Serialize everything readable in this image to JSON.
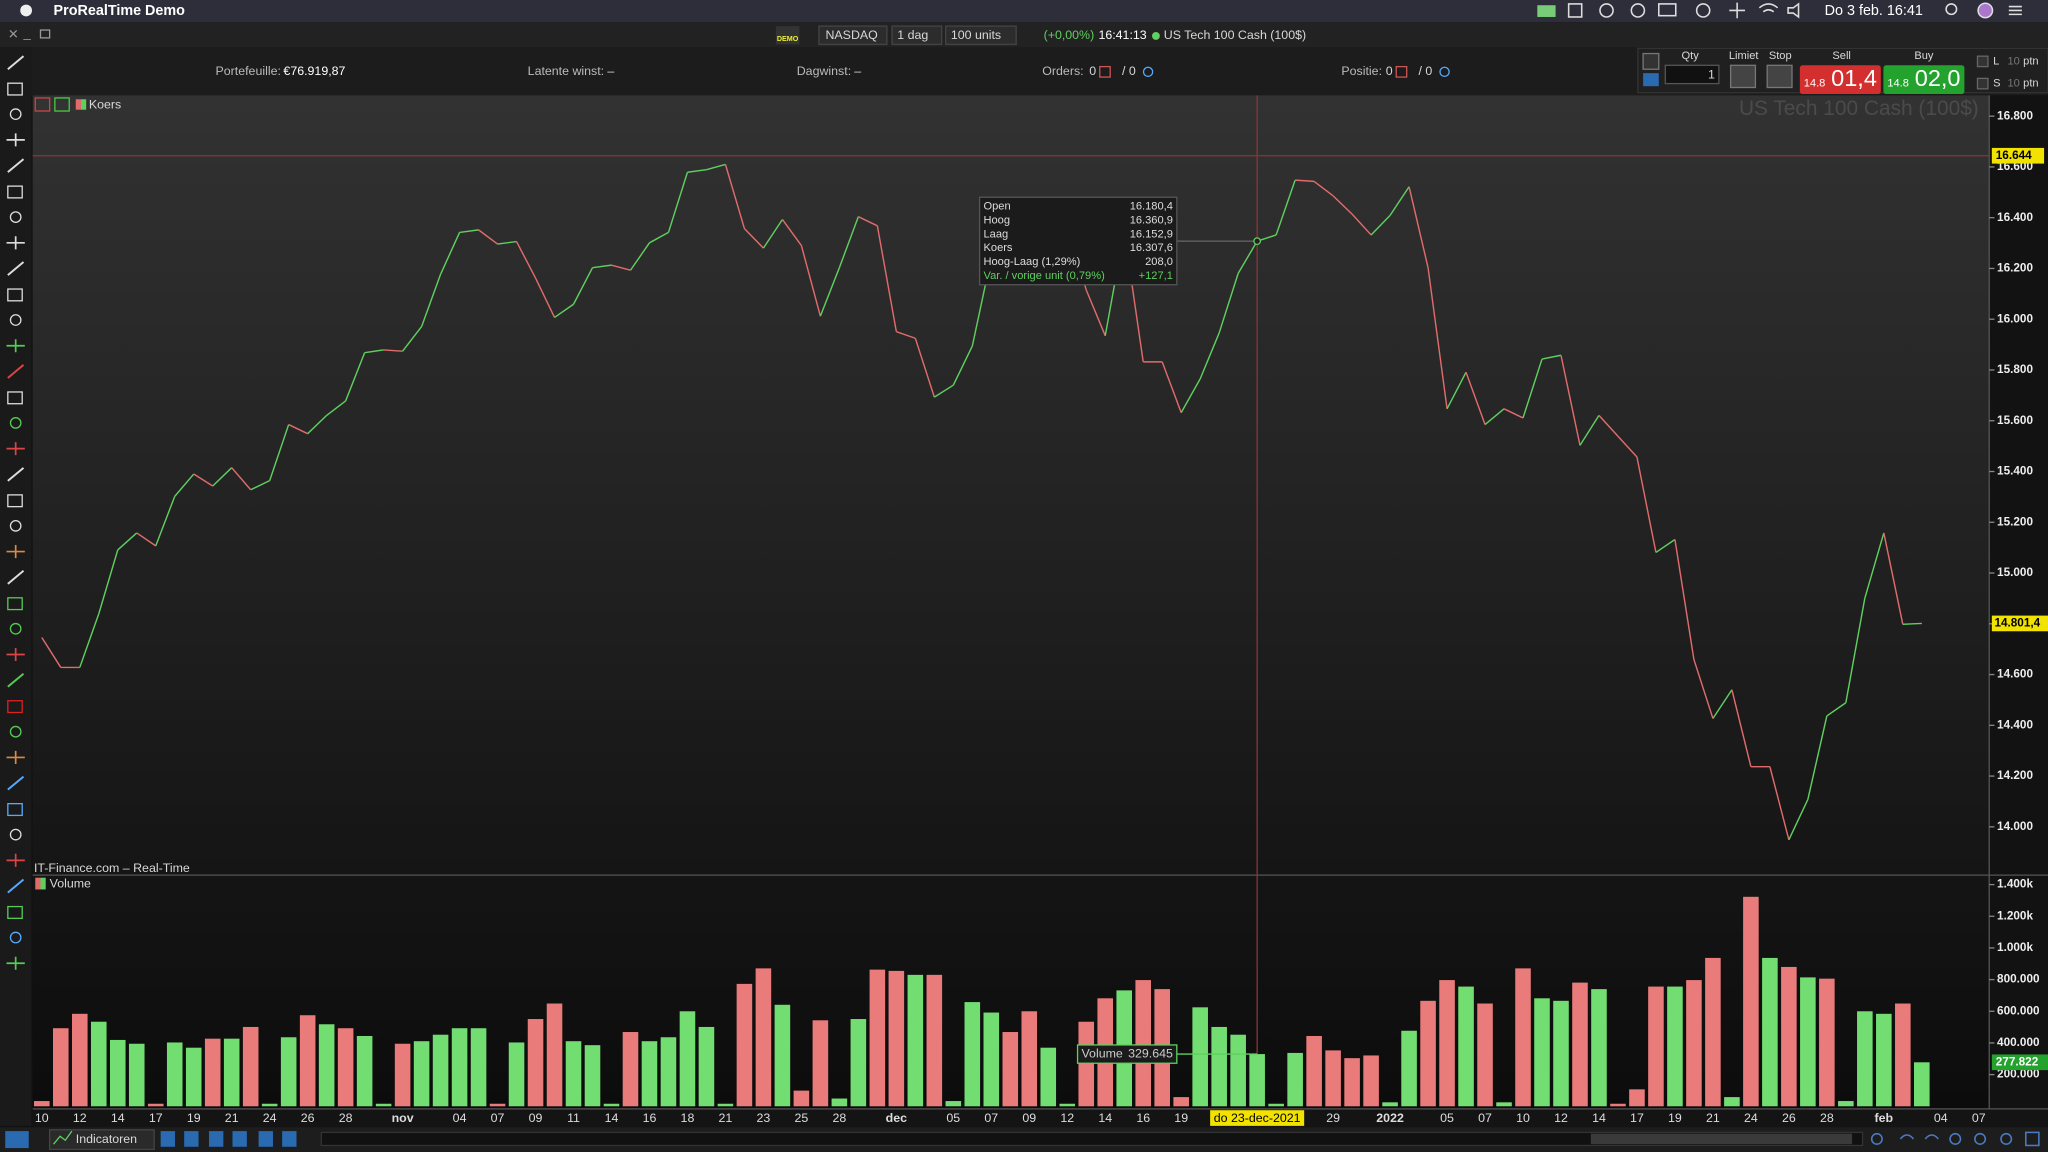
{
  "menu_bar": {
    "app": "ProRealTime Demo",
    "clock": "Do 3 feb.  16:41"
  },
  "toolbar": {
    "badge": "DEMO",
    "market": "NASDAQ",
    "period": "1 dag",
    "units": "100 units",
    "change": "(+0,00%)",
    "time": "16:41:13",
    "instrument": "US Tech 100 Cash (100$)"
  },
  "account": {
    "portfolio_label": "Portefeuille:",
    "portfolio": "€76.919,87",
    "latent_label": "Latente winst:",
    "latent": "–",
    "day_label": "Dagwinst:",
    "day": "–",
    "orders_label": "Orders:",
    "orders": "0",
    "orders_total": "/ 0",
    "position_label": "Positie:",
    "position": "0",
    "position_total": "/ 0"
  },
  "order_panel": {
    "qty_label": "Qty",
    "qty": "1",
    "limit_label": "Limiet",
    "stop_label": "Stop",
    "sell_label": "Sell",
    "sell_prefix": "14.8",
    "sell_price": "01,4",
    "buy_label": "Buy",
    "buy_prefix": "14.8",
    "buy_price": "02,0",
    "long_label": "L",
    "short_label": "S",
    "long_points": "10",
    "short_points": "10",
    "points_unit": "ptn"
  },
  "tooltip": {
    "rows": [
      [
        "Open",
        "16.180,4"
      ],
      [
        "Hoog",
        "16.360,9"
      ],
      [
        "Laag",
        "16.152,9"
      ],
      [
        "Koers",
        "16.307,6"
      ],
      [
        "Hoog-Laag (1,29%)",
        "208,0"
      ],
      [
        "Var. / vorige unit (0,79%)",
        "+127,1"
      ]
    ]
  },
  "source": "IT-Finance.com – Real-Time",
  "bottom_bar": {
    "indicators": "Indicatoren"
  },
  "chart_data": [
    {
      "type": "line",
      "watermark": "US Tech 100 Cash (100$)",
      "categories": [
        "10",
        null,
        "12",
        null,
        "14",
        null,
        "17",
        null,
        "19",
        null,
        "21",
        null,
        "24",
        null,
        "26",
        null,
        "28",
        null,
        null,
        "nov",
        null,
        null,
        "04",
        null,
        "07",
        null,
        "09",
        null,
        "11",
        null,
        "14",
        null,
        "16",
        null,
        "18",
        null,
        "21",
        null,
        "23",
        null,
        "25",
        null,
        "28",
        null,
        null,
        "dec",
        null,
        null,
        "05",
        null,
        "07",
        null,
        "09",
        null,
        "12",
        null,
        "14",
        null,
        "16",
        null,
        "19",
        null,
        null,
        null,
        "do 23-dec-2021",
        null,
        null,
        null,
        "29",
        null,
        null,
        "2022",
        null,
        null,
        "05",
        null,
        "07",
        null,
        "10",
        null,
        "12",
        null,
        "14",
        null,
        "17",
        null,
        "19",
        null,
        "21",
        null,
        "24",
        null,
        "26",
        null,
        "28",
        null,
        null,
        "feb",
        null,
        null,
        "04",
        null,
        "07"
      ],
      "series": [
        {
          "name": "Koers",
          "up_color": "#5fcf5f",
          "down_color": "#e06b6b",
          "values": [
            14746,
            14628,
            14628,
            14839,
            15091,
            15158,
            15107,
            15302,
            15390,
            15343,
            15415,
            15328,
            15364,
            15585,
            15549,
            15621,
            15678,
            15868,
            15879,
            15874,
            15971,
            16177,
            16342,
            16352,
            16296,
            16306,
            16162,
            16007,
            16059,
            16203,
            16213,
            16193,
            16301,
            16342,
            16579,
            16589,
            16610,
            16357,
            16280,
            16393,
            16290,
            16012,
            16203,
            16404,
            16368,
            15951,
            15925,
            15693,
            15740,
            15894,
            16244,
            16265,
            16136,
            16316,
            16383,
            16115,
            15935,
            16347,
            15832,
            15832,
            15632,
            15765,
            15946,
            16180.5,
            16307.6,
            16332,
            16548,
            16543,
            16486,
            16414,
            16332,
            16409,
            16522,
            16203,
            15647,
            15791,
            15585,
            15647,
            15611,
            15843,
            15858,
            15503,
            15621,
            15539,
            15457,
            15081,
            15132,
            14659,
            14427,
            14540,
            14237,
            14237,
            13949,
            14108,
            14437,
            14489,
            14901,
            15158,
            14798,
            14801.4,
            null,
            null,
            null
          ],
          "value_labels": [
            null,
            null,
            null,
            null,
            null,
            null,
            null,
            null,
            null,
            null,
            null,
            null,
            null,
            null,
            null,
            null,
            null,
            null,
            null,
            null,
            null,
            null,
            null,
            null,
            null,
            null,
            null,
            null,
            null,
            null,
            null,
            null,
            null,
            null,
            null,
            null,
            null,
            null,
            null,
            null,
            null,
            null,
            null,
            null,
            null,
            null,
            null,
            null,
            null,
            null,
            null,
            null,
            null,
            null,
            null,
            null,
            null,
            null,
            null,
            null,
            null,
            null,
            null,
            null,
            null,
            null,
            null,
            null,
            null,
            null,
            null,
            null,
            null,
            null,
            null,
            null,
            null,
            null,
            null,
            null,
            null,
            null,
            null,
            null,
            null,
            null,
            null,
            null,
            null,
            null,
            null,
            null,
            null,
            null,
            null,
            null,
            null,
            null,
            null,
            "14.801,4",
            null,
            null,
            null
          ]
        }
      ],
      "ylim": [
        13815,
        16882
      ],
      "yticks": [
        {
          "value": 14000,
          "label": "14.000"
        },
        {
          "value": 14200,
          "label": "14.200"
        },
        {
          "value": 14400,
          "label": "14.400"
        },
        {
          "value": 14600,
          "label": "14.600"
        },
        {
          "value": 14800,
          "label": "14.800"
        },
        {
          "value": 15000,
          "label": "15.000"
        },
        {
          "value": 15200,
          "label": "15.200"
        },
        {
          "value": 15400,
          "label": "15.400"
        },
        {
          "value": 15600,
          "label": "15.600"
        },
        {
          "value": 15800,
          "label": "15.800"
        },
        {
          "value": 16000,
          "label": "16.000"
        },
        {
          "value": 16200,
          "label": "16.200"
        },
        {
          "value": 16400,
          "label": "16.400"
        },
        {
          "value": 16600,
          "label": "16.600"
        },
        {
          "value": 16800,
          "label": "16.800"
        }
      ],
      "crosshair": {
        "value": 16644,
        "label": "16.644"
      }
    },
    {
      "type": "bar",
      "series": [
        {
          "name": "Volume",
          "values": [
            33000,
            493000,
            584000,
            534000,
            419000,
            395000,
            16000,
            403000,
            370000,
            427000,
            427000,
            501000,
            16000,
            436000,
            575000,
            518000,
            493000,
            444000,
            16000,
            395000,
            411000,
            452000,
            493000,
            493000,
            16000,
            403000,
            551000,
            649000,
            411000,
            386000,
            16000,
            469000,
            411000,
            436000,
            600000,
            501000,
            16000,
            773000,
            871000,
            641000,
            99000,
            543000,
            49000,
            551000,
            863000,
            855000,
            830000,
            830000,
            33000,
            658000,
            592000,
            469000,
            600000,
            370000,
            16000,
            534000,
            682000,
            732000,
            797000,
            740000,
            58000,
            625000,
            501000,
            452000,
            329645,
            16000,
            337000,
            444000,
            353000,
            304000,
            321000,
            25000,
            477000,
            666000,
            797000,
            756000,
            649000,
            25000,
            871000,
            682000,
            666000,
            781000,
            740000,
            16000,
            107000,
            756000,
            756000,
            797000,
            937000,
            58000,
            1323000,
            937000,
            880000,
            814000,
            806000,
            33000,
            600000,
            584000,
            649000,
            277822,
            null,
            null,
            null
          ],
          "value_labels": [
            null,
            null,
            null,
            null,
            null,
            null,
            null,
            null,
            null,
            null,
            null,
            null,
            null,
            null,
            null,
            null,
            null,
            null,
            null,
            null,
            null,
            null,
            null,
            null,
            null,
            null,
            null,
            null,
            null,
            null,
            null,
            null,
            null,
            null,
            null,
            null,
            null,
            null,
            null,
            null,
            null,
            null,
            null,
            null,
            null,
            null,
            null,
            null,
            null,
            null,
            null,
            null,
            null,
            null,
            null,
            null,
            null,
            null,
            null,
            null,
            null,
            null,
            null,
            null,
            "329.645",
            null,
            null,
            null,
            null,
            null,
            null,
            null,
            null,
            null,
            null,
            null,
            null,
            null,
            null,
            null,
            null,
            null,
            null,
            null,
            null,
            null,
            null,
            null,
            null,
            null,
            null,
            null,
            null,
            null,
            null,
            null,
            null,
            null,
            null,
            "277.822",
            null,
            null,
            null
          ],
          "colors": [
            "#ea7b7b",
            "#ea7b7b",
            "#ea7b7b",
            "#72de72",
            "#72de72",
            "#72de72",
            "#ea7b7b",
            "#72de72",
            "#72de72",
            "#ea7b7b",
            "#72de72",
            "#ea7b7b",
            "#72de72",
            "#72de72",
            "#ea7b7b",
            "#72de72",
            "#ea7b7b",
            "#72de72",
            "#72de72",
            "#ea7b7b",
            "#72de72",
            "#72de72",
            "#72de72",
            "#72de72",
            "#ea7b7b",
            "#72de72",
            "#ea7b7b",
            "#ea7b7b",
            "#72de72",
            "#72de72",
            "#72de72",
            "#ea7b7b",
            "#72de72",
            "#72de72",
            "#72de72",
            "#72de72",
            "#72de72",
            "#ea7b7b",
            "#ea7b7b",
            "#72de72",
            "#ea7b7b",
            "#ea7b7b",
            "#72de72",
            "#72de72",
            "#ea7b7b",
            "#ea7b7b",
            "#72de72",
            "#ea7b7b",
            "#72de72",
            "#72de72",
            "#72de72",
            "#ea7b7b",
            "#ea7b7b",
            "#72de72",
            "#72de72",
            "#ea7b7b",
            "#ea7b7b",
            "#72de72",
            "#ea7b7b",
            "#ea7b7b",
            "#ea7b7b",
            "#72de72",
            "#72de72",
            "#72de72",
            "#72de72",
            "#72de72",
            "#72de72",
            "#ea7b7b",
            "#ea7b7b",
            "#ea7b7b",
            "#ea7b7b",
            "#72de72",
            "#72de72",
            "#ea7b7b",
            "#ea7b7b",
            "#72de72",
            "#ea7b7b",
            "#72de72",
            "#ea7b7b",
            "#72de72",
            "#72de72",
            "#ea7b7b",
            "#72de72",
            "#ea7b7b",
            "#ea7b7b",
            "#ea7b7b",
            "#72de72",
            "#ea7b7b",
            "#ea7b7b",
            "#72de72",
            "#ea7b7b",
            "#72de72",
            "#ea7b7b",
            "#72de72",
            "#ea7b7b",
            "#72de72",
            "#72de72",
            "#72de72",
            "#ea7b7b",
            "#72de72",
            null,
            null,
            null
          ]
        }
      ],
      "ylim": [
        0,
        1460000
      ],
      "yticks": [
        {
          "value": 200000,
          "label": "200.000"
        },
        {
          "value": 400000,
          "label": "400.000"
        },
        {
          "value": 600000,
          "label": "600.000"
        },
        {
          "value": 800000,
          "label": "800.000"
        },
        {
          "value": 1000000,
          "label": "1.000k"
        },
        {
          "value": 1200000,
          "label": "1.200k"
        },
        {
          "value": 1400000,
          "label": "1.400k"
        }
      ]
    }
  ]
}
